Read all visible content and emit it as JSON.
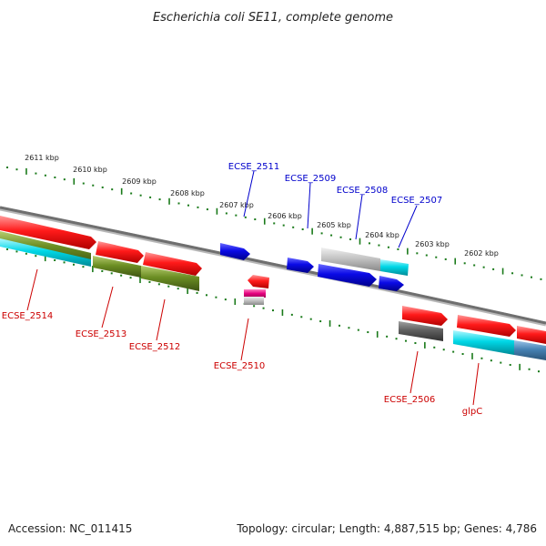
{
  "title": "Escherichia coli SE11, complete genome",
  "footer": {
    "accession": "Accession: NC_011415",
    "topology": "Topology: circular; Length: 4,887,515 bp; Genes: 4,786"
  },
  "colors": {
    "backbone": "#8a8a8a",
    "tick": "#1a7a1a",
    "label_top": "#0000cc",
    "label_bottom": "#cc0000",
    "red": "#ff1a1a",
    "blue": "#0a0ae6",
    "olive": "#6b8e23",
    "cyan": "#00d7e6",
    "grey": "#bdbdbd",
    "darkgrey": "#606060",
    "magenta": "#e6007e",
    "steelblue": "#4682b4"
  },
  "scale": {
    "unit": "kbp",
    "ticks": [
      "2611 kbp",
      "2610 kbp",
      "2609 kbp",
      "2608 kbp",
      "2607 kbp",
      "2606 kbp",
      "2605 kbp",
      "2604 kbp",
      "2603 kbp",
      "2602 kbp"
    ]
  },
  "genes_top": [
    "ECSE_2511",
    "ECSE_2509",
    "ECSE_2508",
    "ECSE_2507"
  ],
  "genes_bottom": [
    "ECSE_2514",
    "ECSE_2513",
    "ECSE_2512",
    "ECSE_2510",
    "ECSE_2506",
    "glpC"
  ]
}
